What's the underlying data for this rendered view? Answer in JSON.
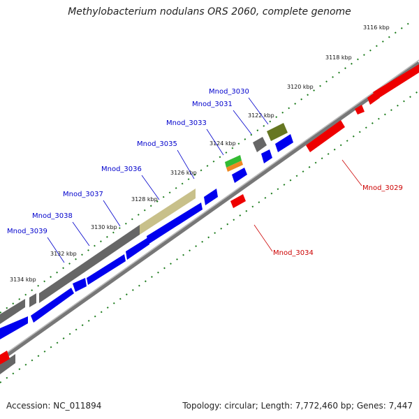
{
  "title": "Methylobacterium nodulans ORS 2060, complete genome",
  "accession": "Accession: NC_011894",
  "topology": "Topology: circular; Length: 7,772,460 bp; Genes: 7,447",
  "colors": {
    "forward_cds": "#0000ee",
    "reverse_cds": "#ee0000",
    "backbone": "#888888",
    "tick": "#1a7a1a",
    "label_forward": "#0000cc",
    "label_reverse": "#cc0000"
  },
  "kbp_marks": [
    "3116 kbp",
    "3118 kbp",
    "3120 kbp",
    "3122 kbp",
    "3124 kbp",
    "3126 kbp",
    "3128 kbp",
    "3130 kbp",
    "3132 kbp",
    "3134 kbp"
  ],
  "gene_labels_forward": [
    "Mnod_3030",
    "Mnod_3031",
    "Mnod_3033",
    "Mnod_3035",
    "Mnod_3036",
    "Mnod_3037",
    "Mnod_3038",
    "Mnod_3039"
  ],
  "gene_labels_reverse": [
    "Mnod_3029",
    "Mnod_3034"
  ]
}
